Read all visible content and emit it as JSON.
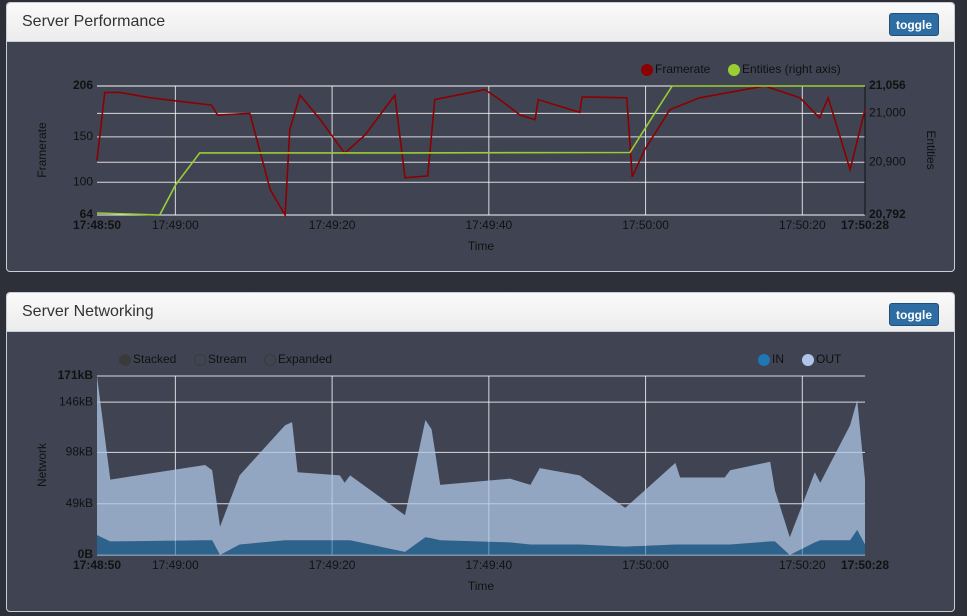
{
  "panels": [
    {
      "title": "Server Performance",
      "button": "toggle"
    },
    {
      "title": "Server Networking",
      "button": "toggle"
    }
  ],
  "chart_data": [
    {
      "type": "line",
      "x_label": "Time",
      "y_label": "Framerate",
      "y2_label": "Entities",
      "xlim": [
        64130,
        64228
      ],
      "xticks": [
        {
          "value": 64130,
          "label": "17:48:50"
        },
        {
          "value": 64140,
          "label": "17:49:00"
        },
        {
          "value": 64160,
          "label": "17:49:20"
        },
        {
          "value": 64180,
          "label": "17:49:40"
        },
        {
          "value": 64200,
          "label": "17:50:00"
        },
        {
          "value": 64220,
          "label": "17:50:20"
        },
        {
          "value": 64228,
          "label": "17:50:28"
        }
      ],
      "ylim": [
        64,
        206
      ],
      "yticks": [
        64,
        100,
        150,
        206
      ],
      "y2lim": [
        20792,
        21056
      ],
      "y2ticks": [
        {
          "value": 20792,
          "label": "20,792"
        },
        {
          "value": 20900,
          "label": "20,900"
        },
        {
          "value": 21000,
          "label": "21,000"
        },
        {
          "value": 21056,
          "label": "21,056"
        }
      ],
      "grid": true,
      "series": [
        {
          "name": "Framerate",
          "color": "#8b0000",
          "x": [
            64130,
            64131,
            64132.9,
            64136.8,
            64144.6,
            64145.4,
            64149.5,
            64152.1,
            64154,
            64154.6,
            64155.9,
            64158.5,
            64161.6,
            64164.2,
            64168,
            64169.3,
            64172.2,
            64173.1,
            64179.5,
            64181.4,
            64184,
            64185.9,
            64186.3,
            64191.6,
            64191.9,
            64197.6,
            64198.3,
            64199.9,
            64203.1,
            64206.9,
            64215.2,
            64219.7,
            64222.2,
            64223.3,
            64226.1,
            64228
          ],
          "values": [
            124,
            199,
            199,
            193,
            185,
            174,
            176,
            92,
            64,
            158,
            196,
            169,
            132,
            152,
            196,
            105,
            107,
            191,
            202,
            191,
            174,
            169,
            191,
            177,
            194,
            193,
            106,
            136,
            180,
            193,
            206,
            193,
            171,
            193,
            114,
            180
          ]
        },
        {
          "name": "Entities (right axis)",
          "color": "#9acd32",
          "axis": "y2",
          "x": [
            64130,
            64138,
            64140,
            64143.1,
            64168.7,
            64198,
            64200.6,
            64203.4,
            64228
          ],
          "values": [
            20796,
            20792,
            20853,
            20919,
            20919,
            20920,
            20986,
            21056,
            21056
          ]
        }
      ]
    },
    {
      "type": "area",
      "stacked": true,
      "x_label": "Time",
      "y_label": "Network",
      "controls": [
        "Stacked",
        "Stream",
        "Expanded"
      ],
      "xlim": [
        64130,
        64228
      ],
      "xticks": [
        {
          "value": 64130,
          "label": "17:48:50"
        },
        {
          "value": 64140,
          "label": "17:49:00"
        },
        {
          "value": 64160,
          "label": "17:49:20"
        },
        {
          "value": 64180,
          "label": "17:49:40"
        },
        {
          "value": 64200,
          "label": "17:50:00"
        },
        {
          "value": 64220,
          "label": "17:50:20"
        },
        {
          "value": 64228,
          "label": "17:50:28"
        }
      ],
      "ylim": [
        0,
        171
      ],
      "yticks": [
        {
          "value": 0,
          "label": "0B"
        },
        {
          "value": 49,
          "label": "49kB"
        },
        {
          "value": 98,
          "label": "98kB"
        },
        {
          "value": 146,
          "label": "146kB"
        },
        {
          "value": 171,
          "label": "171kB"
        }
      ],
      "grid": true,
      "x": [
        64130,
        64131.7,
        64143.8,
        64144.7,
        64145.7,
        64148.2,
        64154,
        64154.9,
        64155.6,
        64161,
        64161.6,
        64162.3,
        64169.3,
        64171.9,
        64172.7,
        64173.8,
        64182.7,
        64185.3,
        64186.5,
        64191.6,
        64197.4,
        64203.8,
        64204.4,
        64210.1,
        64210.8,
        64215.9,
        64216.5,
        64218.4,
        64221.6,
        64222.3,
        64226.1,
        64227,
        64228
      ],
      "series": [
        {
          "name": "IN",
          "color": "#1f77b4",
          "values": [
            19,
            13,
            14,
            14,
            0,
            10,
            14,
            14,
            14,
            14,
            14,
            14,
            3,
            17,
            16,
            14,
            12,
            10,
            10,
            10,
            8,
            10,
            10,
            10,
            10,
            13,
            13,
            0,
            12,
            14,
            14,
            24,
            10
          ]
        },
        {
          "name": "OUT",
          "color": "#aec7e8",
          "values": [
            152,
            59,
            72,
            67,
            27,
            66,
            110,
            113,
            65,
            62,
            55,
            62,
            35,
            112,
            104,
            53,
            61,
            57,
            73,
            66,
            37,
            78,
            64,
            64,
            71,
            76,
            49,
            17,
            67,
            55,
            110,
            124,
            62
          ]
        }
      ]
    }
  ]
}
